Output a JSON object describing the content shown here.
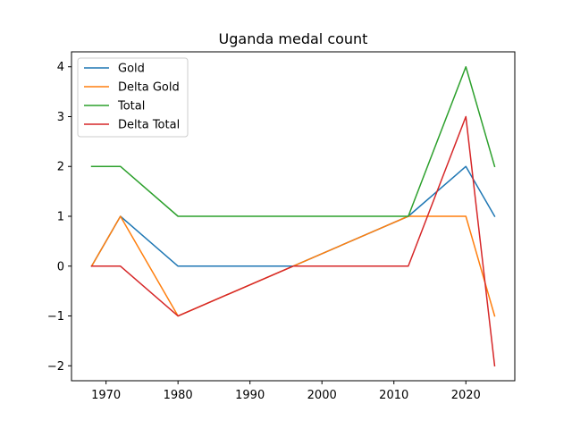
{
  "chart_data": {
    "type": "line",
    "title": "Uganda medal count",
    "xlabel": "",
    "ylabel": "",
    "x": [
      1968,
      1972,
      1980,
      1996,
      2012,
      2020,
      2024
    ],
    "xlim": [
      1965.2,
      2026.8
    ],
    "ylim": [
      -2.3,
      4.3
    ],
    "xticks": [
      1970,
      1980,
      1990,
      2000,
      2010,
      2020
    ],
    "xtick_labels": [
      "1970",
      "1980",
      "1990",
      "2000",
      "2010",
      "2020"
    ],
    "yticks": [
      -2,
      -1,
      0,
      1,
      2,
      3,
      4
    ],
    "ytick_labels": [
      "−2",
      "−1",
      "0",
      "1",
      "2",
      "3",
      "4"
    ],
    "grid": false,
    "legend_position": "top-left",
    "series": [
      {
        "name": "Gold",
        "color": "#1f77b4",
        "values": [
          0,
          1,
          0,
          0,
          1,
          2,
          1
        ]
      },
      {
        "name": "Delta Gold",
        "color": "#ff7f0e",
        "values": [
          0,
          1,
          -1,
          0,
          1,
          1,
          -1
        ]
      },
      {
        "name": "Total",
        "color": "#2ca02c",
        "values": [
          2,
          2,
          1,
          1,
          1,
          4,
          2
        ]
      },
      {
        "name": "Delta Total",
        "color": "#d62728",
        "values": [
          0,
          0,
          -1,
          0,
          0,
          3,
          -2
        ]
      }
    ]
  }
}
